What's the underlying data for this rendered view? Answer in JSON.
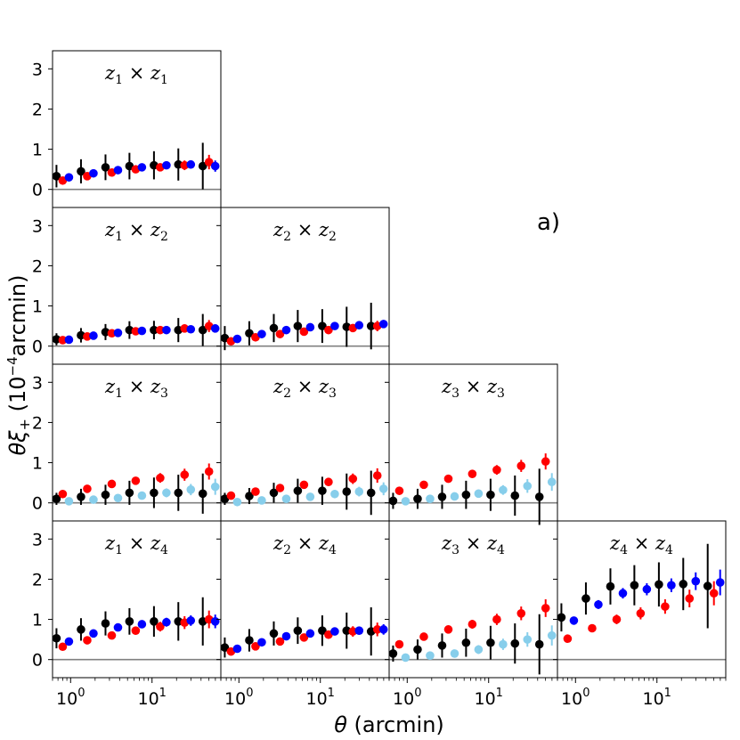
{
  "figure": {
    "annotation": "a)",
    "xlabel_symbol": "θ",
    "xlabel_unit": "(arcmin)",
    "ylabel_main": "θξ",
    "ylabel_sub": "+",
    "ylabel_unit_pre": "(10",
    "ylabel_exp": "−4",
    "ylabel_unit_post": "arcmin)"
  },
  "colors": {
    "black": "#000000",
    "blue": "#0000ff",
    "red": "#ff0000",
    "lightblue": "#87ceeb",
    "zero_line": "#808080"
  },
  "chart_data": {
    "type": "scatter",
    "layout": "lower-triangular grid of tomographic bin pairs",
    "xscale": "log",
    "xlim": [
      0.6,
      70
    ],
    "ylim": [
      -0.45,
      3.45
    ],
    "xticks": [
      {
        "value": 1,
        "base": "10",
        "exp": "0"
      },
      {
        "value": 10,
        "base": "10",
        "exp": "1"
      }
    ],
    "yticks": [
      0,
      1,
      2,
      3
    ],
    "xlabel": "θ (arcmin)",
    "ylabel": "θξ+ (10^-4 arcmin)",
    "theta": [
      0.8,
      1.6,
      3.2,
      6.3,
      12.6,
      25.1,
      50.1
    ],
    "panels": [
      {
        "row": 0,
        "col": 0,
        "i": "1",
        "j": "1",
        "series": [
          {
            "name": "black",
            "y": [
              0.33,
              0.45,
              0.55,
              0.58,
              0.6,
              0.62,
              0.58
            ],
            "err": [
              0.28,
              0.3,
              0.32,
              0.33,
              0.35,
              0.4,
              0.58
            ]
          },
          {
            "name": "red",
            "y": [
              0.22,
              0.33,
              0.42,
              0.5,
              0.55,
              0.6,
              0.68
            ],
            "err": [
              0.05,
              0.06,
              0.07,
              0.08,
              0.1,
              0.12,
              0.18
            ]
          },
          {
            "name": "blue",
            "y": [
              0.3,
              0.4,
              0.48,
              0.55,
              0.6,
              0.62,
              0.58
            ],
            "err": [
              0.04,
              0.05,
              0.06,
              0.07,
              0.08,
              0.1,
              0.14
            ]
          }
        ]
      },
      {
        "row": 1,
        "col": 0,
        "i": "1",
        "j": "2",
        "series": [
          {
            "name": "black",
            "y": [
              0.17,
              0.27,
              0.35,
              0.4,
              0.4,
              0.4,
              0.4
            ],
            "err": [
              0.15,
              0.18,
              0.2,
              0.22,
              0.23,
              0.3,
              0.4
            ]
          },
          {
            "name": "red",
            "y": [
              0.15,
              0.24,
              0.32,
              0.37,
              0.4,
              0.44,
              0.5
            ],
            "err": [
              0.04,
              0.05,
              0.06,
              0.07,
              0.08,
              0.1,
              0.15
            ]
          },
          {
            "name": "blue",
            "y": [
              0.16,
              0.26,
              0.33,
              0.38,
              0.4,
              0.42,
              0.44
            ],
            "err": [
              0.03,
              0.04,
              0.05,
              0.06,
              0.07,
              0.08,
              0.1
            ]
          }
        ]
      },
      {
        "row": 1,
        "col": 1,
        "i": "2",
        "j": "2",
        "series": [
          {
            "name": "black",
            "y": [
              0.2,
              0.32,
              0.45,
              0.5,
              0.5,
              0.48,
              0.5
            ],
            "err": [
              0.3,
              0.3,
              0.35,
              0.4,
              0.42,
              0.5,
              0.58
            ]
          },
          {
            "name": "red",
            "y": [
              0.12,
              0.22,
              0.3,
              0.36,
              0.4,
              0.45,
              0.5
            ],
            "err": [
              0.04,
              0.05,
              0.06,
              0.07,
              0.08,
              0.1,
              0.13
            ]
          },
          {
            "name": "blue",
            "y": [
              0.18,
              0.3,
              0.4,
              0.47,
              0.5,
              0.52,
              0.55
            ],
            "err": [
              0.04,
              0.05,
              0.06,
              0.07,
              0.08,
              0.09,
              0.1
            ]
          }
        ]
      },
      {
        "row": 2,
        "col": 0,
        "i": "1",
        "j": "3",
        "series": [
          {
            "name": "black",
            "y": [
              0.1,
              0.15,
              0.2,
              0.25,
              0.25,
              0.25,
              0.23
            ],
            "err": [
              0.15,
              0.2,
              0.25,
              0.3,
              0.38,
              0.45,
              0.5
            ]
          },
          {
            "name": "red",
            "y": [
              0.22,
              0.35,
              0.47,
              0.55,
              0.62,
              0.7,
              0.78
            ],
            "err": [
              0.05,
              0.06,
              0.07,
              0.09,
              0.12,
              0.15,
              0.2
            ]
          },
          {
            "name": "lightblue",
            "y": [
              0.04,
              0.08,
              0.12,
              0.18,
              0.25,
              0.33,
              0.4
            ],
            "err": [
              0.05,
              0.06,
              0.07,
              0.09,
              0.11,
              0.14,
              0.2
            ]
          }
        ]
      },
      {
        "row": 2,
        "col": 1,
        "i": "2",
        "j": "3",
        "series": [
          {
            "name": "black",
            "y": [
              0.1,
              0.17,
              0.25,
              0.3,
              0.3,
              0.28,
              0.25
            ],
            "err": [
              0.15,
              0.2,
              0.25,
              0.3,
              0.35,
              0.45,
              0.55
            ]
          },
          {
            "name": "red",
            "y": [
              0.18,
              0.28,
              0.37,
              0.45,
              0.52,
              0.6,
              0.68
            ],
            "err": [
              0.04,
              0.05,
              0.06,
              0.08,
              0.1,
              0.13,
              0.18
            ]
          },
          {
            "name": "lightblue",
            "y": [
              0.02,
              0.06,
              0.1,
              0.15,
              0.22,
              0.28,
              0.35
            ],
            "err": [
              0.04,
              0.05,
              0.06,
              0.08,
              0.1,
              0.12,
              0.16
            ]
          }
        ]
      },
      {
        "row": 2,
        "col": 2,
        "i": "3",
        "j": "3",
        "series": [
          {
            "name": "black",
            "y": [
              0.05,
              0.1,
              0.15,
              0.2,
              0.2,
              0.18,
              0.15
            ],
            "err": [
              0.2,
              0.25,
              0.3,
              0.35,
              0.4,
              0.5,
              0.7
            ]
          },
          {
            "name": "red",
            "y": [
              0.3,
              0.45,
              0.6,
              0.72,
              0.82,
              0.92,
              1.03
            ],
            "err": [
              0.05,
              0.06,
              0.08,
              0.1,
              0.12,
              0.15,
              0.2
            ]
          },
          {
            "name": "lightblue",
            "y": [
              0.04,
              0.1,
              0.16,
              0.23,
              0.32,
              0.42,
              0.52
            ],
            "err": [
              0.05,
              0.06,
              0.08,
              0.1,
              0.12,
              0.17,
              0.22
            ]
          }
        ]
      },
      {
        "row": 3,
        "col": 0,
        "i": "1",
        "j": "4",
        "series": [
          {
            "name": "black",
            "y": [
              0.53,
              0.75,
              0.9,
              0.95,
              0.95,
              0.95,
              0.95
            ],
            "err": [
              0.25,
              0.28,
              0.3,
              0.33,
              0.38,
              0.48,
              0.6
            ]
          },
          {
            "name": "red",
            "y": [
              0.32,
              0.48,
              0.6,
              0.72,
              0.82,
              0.92,
              1.0
            ],
            "err": [
              0.05,
              0.06,
              0.08,
              0.1,
              0.12,
              0.16,
              0.22
            ]
          },
          {
            "name": "blue",
            "y": [
              0.45,
              0.65,
              0.8,
              0.88,
              0.93,
              0.97,
              0.95
            ],
            "err": [
              0.05,
              0.06,
              0.08,
              0.09,
              0.11,
              0.13,
              0.17
            ]
          }
        ]
      },
      {
        "row": 3,
        "col": 1,
        "i": "2",
        "j": "4",
        "series": [
          {
            "name": "black",
            "y": [
              0.3,
              0.48,
              0.65,
              0.72,
              0.72,
              0.72,
              0.7
            ],
            "err": [
              0.25,
              0.28,
              0.3,
              0.33,
              0.38,
              0.45,
              0.6
            ]
          },
          {
            "name": "red",
            "y": [
              0.2,
              0.33,
              0.45,
              0.55,
              0.62,
              0.7,
              0.75
            ],
            "err": [
              0.04,
              0.05,
              0.06,
              0.08,
              0.1,
              0.13,
              0.17
            ]
          },
          {
            "name": "blue",
            "y": [
              0.27,
              0.43,
              0.58,
              0.65,
              0.7,
              0.72,
              0.75
            ],
            "err": [
              0.04,
              0.05,
              0.06,
              0.07,
              0.08,
              0.1,
              0.13
            ]
          }
        ]
      },
      {
        "row": 3,
        "col": 2,
        "i": "3",
        "j": "4",
        "series": [
          {
            "name": "black",
            "y": [
              0.15,
              0.25,
              0.35,
              0.42,
              0.42,
              0.4,
              0.38
            ],
            "err": [
              0.2,
              0.25,
              0.3,
              0.35,
              0.42,
              0.5,
              0.75
            ]
          },
          {
            "name": "red",
            "y": [
              0.38,
              0.57,
              0.75,
              0.88,
              1.0,
              1.15,
              1.28
            ],
            "err": [
              0.05,
              0.07,
              0.09,
              0.11,
              0.14,
              0.17,
              0.22
            ]
          },
          {
            "name": "lightblue",
            "y": [
              0.05,
              0.1,
              0.15,
              0.25,
              0.38,
              0.5,
              0.6
            ],
            "err": [
              0.06,
              0.07,
              0.09,
              0.11,
              0.14,
              0.18,
              0.25
            ]
          }
        ]
      },
      {
        "row": 3,
        "col": 3,
        "i": "4",
        "j": "4",
        "series": [
          {
            "name": "black",
            "y": [
              1.05,
              1.52,
              1.82,
              1.85,
              1.87,
              1.88,
              1.83
            ],
            "err": [
              0.35,
              0.4,
              0.45,
              0.5,
              0.55,
              0.65,
              1.05
            ]
          },
          {
            "name": "red",
            "y": [
              0.52,
              0.78,
              1.0,
              1.15,
              1.32,
              1.52,
              1.65
            ],
            "err": [
              0.06,
              0.09,
              0.12,
              0.15,
              0.18,
              0.22,
              0.3
            ]
          },
          {
            "name": "blue",
            "y": [
              0.97,
              1.37,
              1.65,
              1.75,
              1.85,
              1.95,
              1.92
            ],
            "err": [
              0.09,
              0.11,
              0.13,
              0.15,
              0.17,
              0.22,
              0.32
            ]
          }
        ]
      }
    ]
  }
}
